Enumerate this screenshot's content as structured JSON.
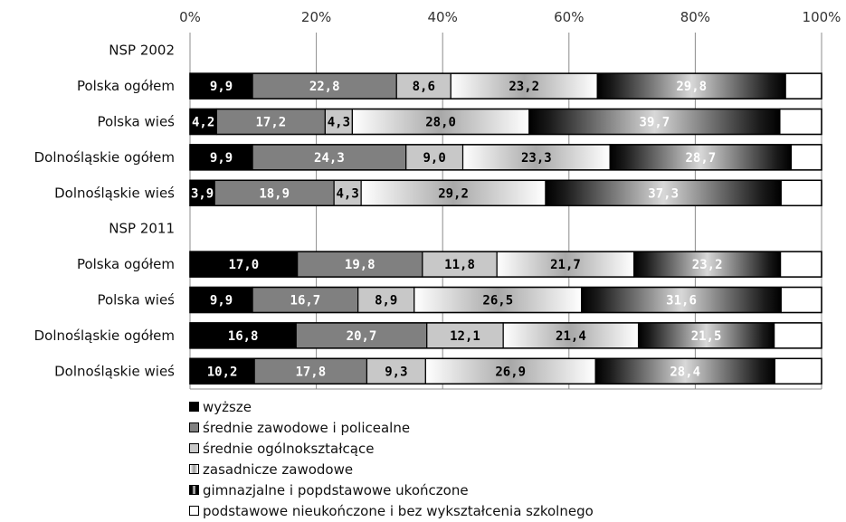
{
  "chart_data": {
    "type": "bar",
    "orientation": "horizontal",
    "stacked": "percent",
    "xlim": [
      0,
      100
    ],
    "x_ticks": [
      "0%",
      "20%",
      "40%",
      "60%",
      "80%",
      "100%"
    ],
    "grid": true,
    "legend_position": "bottom-left",
    "categories": [
      "NSP 2002",
      "Polska ogółem",
      "Polska wieś",
      "Dolnośląskie ogółem",
      "Dolnośląskie wieś",
      "NSP 2011",
      "Polska ogółem",
      "Polska wieś",
      "Dolnośląskie ogółem",
      "Dolnośląskie wieś"
    ],
    "series": [
      {
        "name": "wyższe",
        "color": "#000000",
        "label_color": "#ffffff",
        "values": [
          null,
          9.9,
          4.2,
          9.9,
          3.9,
          null,
          17.0,
          9.9,
          16.8,
          10.2
        ],
        "labels": [
          "",
          "9,9",
          "4,2",
          "9,9",
          "3,9",
          "",
          "17,0",
          "9,9",
          "16,8",
          "10,2"
        ]
      },
      {
        "name": "średnie zawodowe i policealne",
        "color": "#808080",
        "label_color": "#ffffff",
        "values": [
          null,
          22.8,
          17.2,
          24.3,
          18.9,
          null,
          19.8,
          16.7,
          20.7,
          17.8
        ],
        "labels": [
          "",
          "22,8",
          "17,2",
          "24,3",
          "18,9",
          "",
          "19,8",
          "16,7",
          "20,7",
          "17,8"
        ]
      },
      {
        "name": "średnie ogólnokształcące",
        "color": "#c8c8c8",
        "label_color": "#000000",
        "values": [
          null,
          8.6,
          4.3,
          9.0,
          4.3,
          null,
          11.8,
          8.9,
          12.1,
          9.3
        ],
        "labels": [
          "",
          "8,6",
          "4,3",
          "9,0",
          "4,3",
          "",
          "11,8",
          "8,9",
          "12,1",
          "9,3"
        ]
      },
      {
        "name": "zasadnicze zawodowe",
        "color": "#e0e0e0",
        "label_color": "#000000",
        "values": [
          null,
          23.2,
          28.0,
          23.3,
          29.2,
          null,
          21.7,
          26.5,
          21.4,
          26.9
        ],
        "labels": [
          "",
          "23,2",
          "28,0",
          "23,3",
          "29,2",
          "",
          "21,7",
          "26,5",
          "21,4",
          "26,9"
        ]
      },
      {
        "name": "gimnazjalne i popdstawowe ukończone",
        "color": "#3a3a3a",
        "label_color": "#ffffff",
        "values": [
          null,
          29.8,
          39.7,
          28.7,
          37.3,
          null,
          23.2,
          31.6,
          21.5,
          28.4
        ],
        "labels": [
          "",
          "29,8",
          "39,7",
          "28,7",
          "37,3",
          "",
          "23,2",
          "31,6",
          "21,5",
          "28,4"
        ]
      },
      {
        "name": "podstawowe nieukończone i bez wykształcenia szkolnego",
        "color": "#ffffff",
        "label_color": "#000000",
        "values": [
          null,
          5.7,
          6.6,
          4.8,
          6.4,
          null,
          6.5,
          6.4,
          7.5,
          7.4
        ],
        "labels": [
          "",
          "",
          "",
          "",
          "",
          "",
          "",
          "",
          "",
          ""
        ]
      }
    ]
  }
}
